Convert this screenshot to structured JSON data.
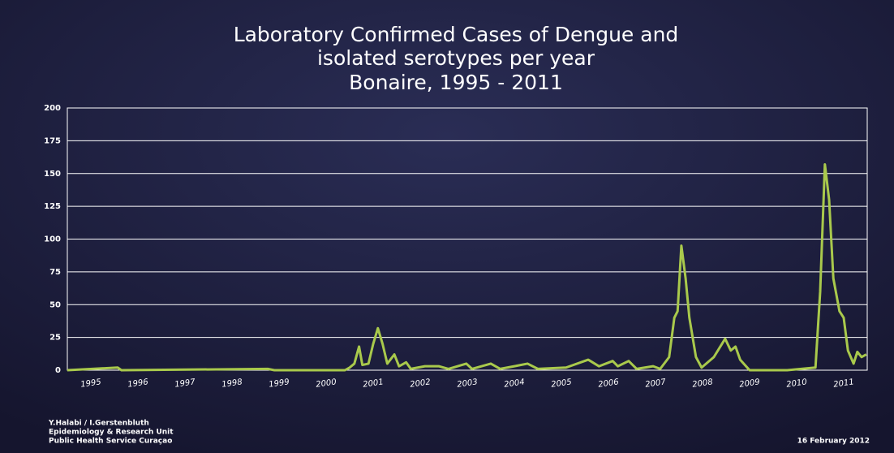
{
  "chart_data": {
    "type": "line",
    "title": [
      "Laboratory Confirmed Cases of Dengue and",
      "isolated serotypes per year",
      "Bonaire, 1995 - 2011"
    ],
    "x": [
      1995.0,
      1996.07,
      1996.15,
      1999.26,
      1999.4,
      2000.9,
      2001.0,
      2001.1,
      2001.2,
      2001.27,
      2001.4,
      2001.5,
      2001.6,
      2001.7,
      2001.8,
      2001.95,
      2002.05,
      2002.2,
      2002.3,
      2002.6,
      2002.9,
      2003.1,
      2003.48,
      2003.6,
      2004.0,
      2004.2,
      2004.5,
      2004.78,
      2005.0,
      2005.6,
      2006.07,
      2006.3,
      2006.59,
      2006.7,
      2006.93,
      2007.1,
      2007.45,
      2007.6,
      2007.79,
      2007.9,
      2007.97,
      2008.05,
      2008.14,
      2008.22,
      2008.36,
      2008.48,
      2008.74,
      2008.98,
      2009.1,
      2009.2,
      2009.3,
      2009.5,
      2010.3,
      2010.9,
      2011.0,
      2011.1,
      2011.19,
      2011.28,
      2011.41,
      2011.5,
      2011.59,
      2011.71,
      2011.79,
      2011.88,
      2011.98
    ],
    "series": [
      {
        "color": "#a9c94c",
        "values": [
          0,
          2,
          0,
          1,
          0,
          0,
          2,
          5,
          18,
          4,
          5,
          20,
          32,
          20,
          5,
          12,
          3,
          6,
          1,
          3,
          3,
          1,
          5,
          1,
          5,
          1,
          3,
          5,
          1,
          2,
          8,
          3,
          7,
          3,
          7,
          1,
          3,
          1,
          10,
          40,
          45,
          95,
          70,
          40,
          10,
          2,
          10,
          24,
          15,
          18,
          8,
          0,
          0,
          2,
          60,
          157,
          130,
          70,
          45,
          40,
          15,
          5,
          14,
          10,
          12
        ]
      }
    ],
    "xlim": [
      1995,
      2012
    ],
    "xticks": [
      1995,
      1996,
      1997,
      1998,
      1999,
      2000,
      2001,
      2002,
      2003,
      2004,
      2005,
      2006,
      2007,
      2008,
      2009,
      2010,
      2011
    ],
    "ylim": [
      0,
      200
    ],
    "yticks": [
      0,
      25,
      50,
      75,
      100,
      125,
      150,
      175,
      200
    ],
    "grid": true,
    "footer": [
      "Y.Halabi / I.Gerstenbluth",
      "Epidemiology & Research Unit",
      "Public Health Service Curaçao"
    ],
    "date": "16 February 2012"
  }
}
